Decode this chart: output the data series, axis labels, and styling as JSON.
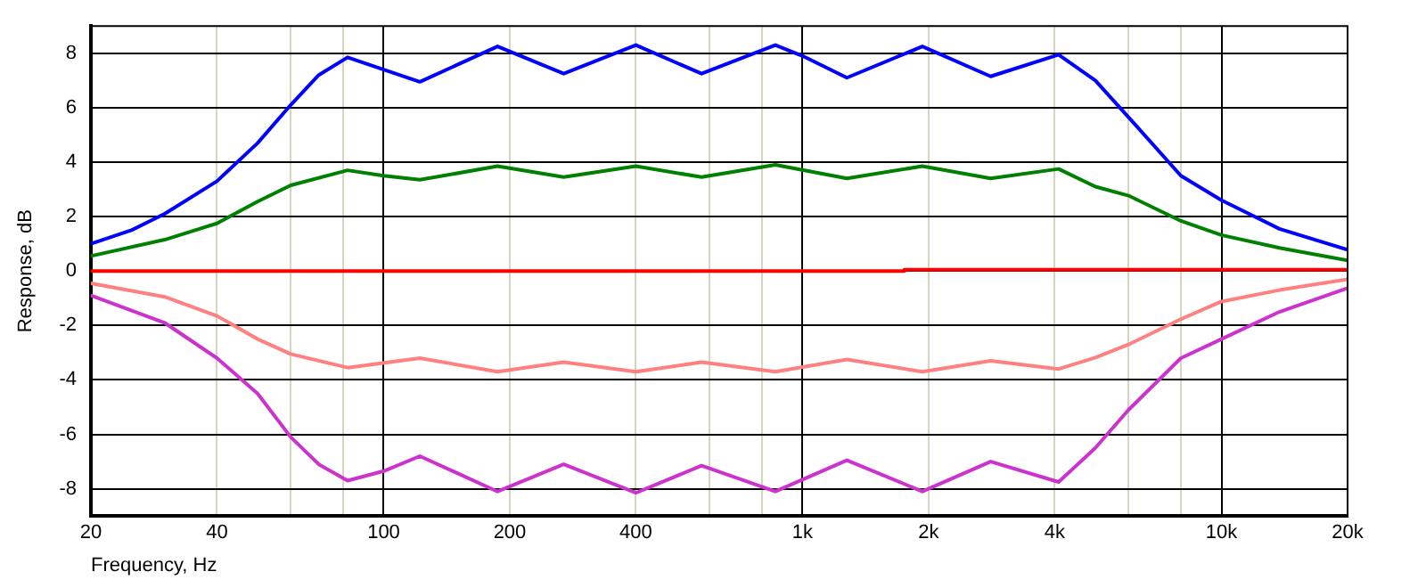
{
  "chart_data": {
    "type": "line",
    "xlabel": "Frequency, Hz",
    "ylabel": "Response, dB",
    "log": "x",
    "grid": true,
    "legend": false,
    "marker": "none",
    "line_style": "solid",
    "xlim": [
      20,
      20000
    ],
    "ylim": [
      -9,
      9
    ],
    "xticks": [
      20,
      40,
      {
        "value": 60,
        "label": null
      },
      {
        "value": 80,
        "label": null
      },
      100,
      200,
      400,
      {
        "value": 600,
        "label": null
      },
      {
        "value": 800,
        "label": null
      },
      {
        "value": 1000,
        "label": "1k"
      },
      {
        "value": 2000,
        "label": "2k"
      },
      {
        "value": 4000,
        "label": "4k"
      },
      {
        "value": 6000,
        "label": null
      },
      {
        "value": 8000,
        "label": null
      },
      {
        "value": 10000,
        "label": "10k"
      },
      {
        "value": 20000,
        "label": "20k"
      }
    ],
    "yticks": [
      -8,
      -6,
      -4,
      -2,
      0,
      2,
      4,
      6,
      8
    ],
    "series": [
      {
        "color": "#0000ff",
        "x": [
          20,
          25,
          30,
          40,
          50,
          60,
          70,
          82,
          100,
          122,
          187,
          269,
          400,
          574,
          861,
          1000,
          1276,
          1932,
          2812,
          4085,
          5000,
          6000,
          8000,
          10000,
          13750,
          20000
        ],
        "values": [
          1.0,
          1.5,
          2.1,
          3.3,
          4.7,
          6.1,
          7.2,
          7.85,
          7.4,
          6.95,
          8.25,
          7.25,
          8.3,
          7.25,
          8.3,
          7.9,
          7.1,
          8.25,
          7.15,
          7.95,
          7.0,
          5.65,
          3.5,
          2.6,
          1.55,
          0.78
        ]
      },
      {
        "color": "#008000",
        "x": [
          20,
          30,
          40,
          50,
          60,
          82,
          100,
          122,
          187,
          269,
          400,
          574,
          861,
          1276,
          1932,
          2812,
          4085,
          5000,
          6000,
          8000,
          10000,
          13750,
          20000
        ],
        "values": [
          0.55,
          1.15,
          1.75,
          2.55,
          3.15,
          3.7,
          3.5,
          3.35,
          3.85,
          3.45,
          3.85,
          3.45,
          3.9,
          3.4,
          3.85,
          3.4,
          3.75,
          3.1,
          2.77,
          1.84,
          1.32,
          0.85,
          0.39
        ]
      },
      {
        "color": "#ff0000",
        "x": [
          20,
          1750,
          1750,
          20000
        ],
        "values": [
          0,
          0,
          0.05,
          0.05
        ]
      },
      {
        "color": "#ff8080",
        "x": [
          20,
          30,
          40,
          50,
          60,
          82,
          122,
          187,
          269,
          400,
          574,
          861,
          1276,
          1932,
          2812,
          4085,
          5000,
          6000,
          8000,
          10000,
          13750,
          20000
        ],
        "values": [
          -0.45,
          -0.95,
          -1.65,
          -2.5,
          -3.05,
          -3.55,
          -3.2,
          -3.7,
          -3.35,
          -3.7,
          -3.35,
          -3.7,
          -3.25,
          -3.7,
          -3.3,
          -3.6,
          -3.18,
          -2.7,
          -1.77,
          -1.12,
          -0.7,
          -0.3
        ]
      },
      {
        "color": "#cc33cc",
        "x": [
          20,
          30,
          40,
          50,
          60,
          70,
          82,
          100,
          122,
          187,
          269,
          400,
          574,
          861,
          1276,
          1932,
          2812,
          4085,
          5000,
          6000,
          8000,
          10000,
          13750,
          20000
        ],
        "values": [
          -0.9,
          -1.9,
          -3.2,
          -4.5,
          -6.1,
          -7.1,
          -7.7,
          -7.35,
          -6.8,
          -8.1,
          -7.1,
          -8.15,
          -7.15,
          -8.1,
          -6.95,
          -8.1,
          -7.0,
          -7.75,
          -6.5,
          -5.1,
          -3.2,
          -2.5,
          -1.5,
          -0.63
        ]
      }
    ]
  }
}
